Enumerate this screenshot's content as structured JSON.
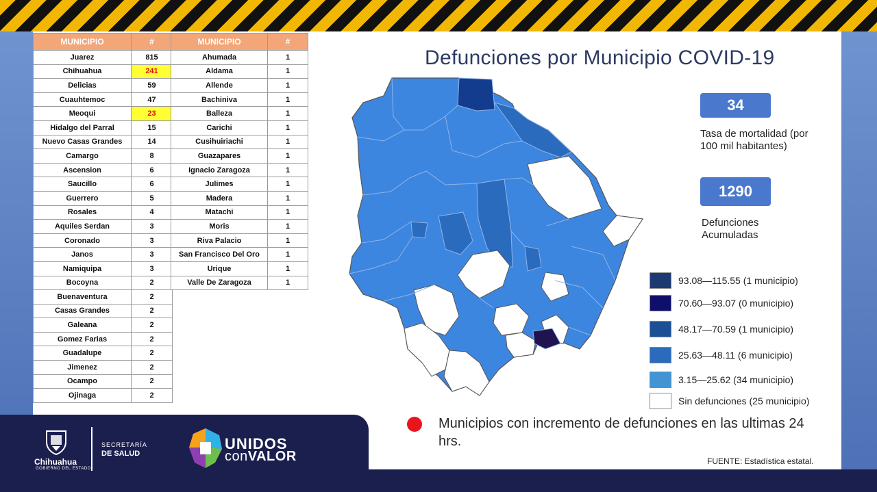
{
  "title": "Defunciones por Municipio COVID-19",
  "table1": {
    "header_municipio": "MUNICIPIO",
    "header_count": "#",
    "rows": [
      {
        "name": "Juarez",
        "count": "815",
        "highlight": false
      },
      {
        "name": "Chihuahua",
        "count": "241",
        "highlight": true
      },
      {
        "name": "Delicias",
        "count": "59",
        "highlight": false
      },
      {
        "name": "Cuauhtemoc",
        "count": "47",
        "highlight": false
      },
      {
        "name": "Meoqui",
        "count": "23",
        "highlight": true
      },
      {
        "name": "Hidalgo del Parral",
        "count": "15",
        "highlight": false
      },
      {
        "name": "Nuevo Casas Grandes",
        "count": "14",
        "highlight": false
      },
      {
        "name": "Camargo",
        "count": "8",
        "highlight": false
      },
      {
        "name": "Ascension",
        "count": "6",
        "highlight": false
      },
      {
        "name": "Saucillo",
        "count": "6",
        "highlight": false
      },
      {
        "name": "Guerrero",
        "count": "5",
        "highlight": false
      },
      {
        "name": "Rosales",
        "count": "4",
        "highlight": false
      },
      {
        "name": "Aquiles Serdan",
        "count": "3",
        "highlight": false
      },
      {
        "name": "Coronado",
        "count": "3",
        "highlight": false
      },
      {
        "name": "Janos",
        "count": "3",
        "highlight": false
      },
      {
        "name": "Namiquipa",
        "count": "3",
        "highlight": false
      },
      {
        "name": "Bocoyna",
        "count": "2",
        "highlight": false
      },
      {
        "name": "Buenaventura",
        "count": "2",
        "highlight": false
      },
      {
        "name": "Casas Grandes",
        "count": "2",
        "highlight": false
      },
      {
        "name": "Galeana",
        "count": "2",
        "highlight": false
      },
      {
        "name": "Gomez Farias",
        "count": "2",
        "highlight": false
      },
      {
        "name": "Guadalupe",
        "count": "2",
        "highlight": false
      },
      {
        "name": "Jimenez",
        "count": "2",
        "highlight": false
      },
      {
        "name": "Ocampo",
        "count": "2",
        "highlight": false
      },
      {
        "name": "Ojinaga",
        "count": "2",
        "highlight": false
      }
    ]
  },
  "table2": {
    "header_municipio": "MUNICIPIO",
    "header_count": "#",
    "rows": [
      {
        "name": "Ahumada",
        "count": "1"
      },
      {
        "name": "Aldama",
        "count": "1"
      },
      {
        "name": "Allende",
        "count": "1"
      },
      {
        "name": "Bachiniva",
        "count": "1"
      },
      {
        "name": "Balleza",
        "count": "1"
      },
      {
        "name": "Carichi",
        "count": "1"
      },
      {
        "name": "Cusihuiriachi",
        "count": "1"
      },
      {
        "name": "Guazapares",
        "count": "1"
      },
      {
        "name": "Ignacio Zaragoza",
        "count": "1"
      },
      {
        "name": "Julimes",
        "count": "1"
      },
      {
        "name": "Madera",
        "count": "1"
      },
      {
        "name": "Matachi",
        "count": "1"
      },
      {
        "name": "Moris",
        "count": "1"
      },
      {
        "name": "Riva Palacio",
        "count": "1"
      },
      {
        "name": "San Francisco Del Oro",
        "count": "1"
      },
      {
        "name": "Urique",
        "count": "1"
      },
      {
        "name": "Valle De Zaragoza",
        "count": "1"
      }
    ]
  },
  "stats": {
    "mortality_value": "34",
    "mortality_label": "Tasa de mortalidad (por 100 mil habitantes)",
    "deaths_value": "1290",
    "deaths_label": "Defunciones Acumuladas"
  },
  "legend": [
    {
      "label": "93.08—115.55 (1 municipio)",
      "color": "#1b3a73"
    },
    {
      "label": "70.60—93.07 (0 municipio)",
      "color": "#0e0e6b"
    },
    {
      "label": "48.17—70.59 (1 municipio)",
      "color": "#1b4f96"
    },
    {
      "label": "25.63—48.11 (6 municipio)",
      "color": "#2a6bbd"
    },
    {
      "label": "3.15—25.62 (34 municipio)",
      "color": "#4294d4"
    },
    {
      "label": "Sin defunciones (25 municipio)",
      "color": "#ffffff"
    }
  ],
  "map_colors": {
    "light": "#3d86e0",
    "medium": "#2a6bbd",
    "dark": "#133c8f",
    "darkest": "#1f1450",
    "none": "#ffffff",
    "border": "#8fb4e6"
  },
  "note": "Municipios con incremento de defunciones en las ultimas 24 hrs.",
  "note_dot_color": "#e8161c",
  "source": "FUENTE: Estadística estatal.",
  "footer": {
    "state": "Chihuahua",
    "state_sub": "GOBIERNO DEL ESTADO",
    "secretaria": "SECRETARÍA",
    "salud": "DE SALUD",
    "unidos": "UNIDOS",
    "con": "con",
    "valor": "VALOR"
  }
}
